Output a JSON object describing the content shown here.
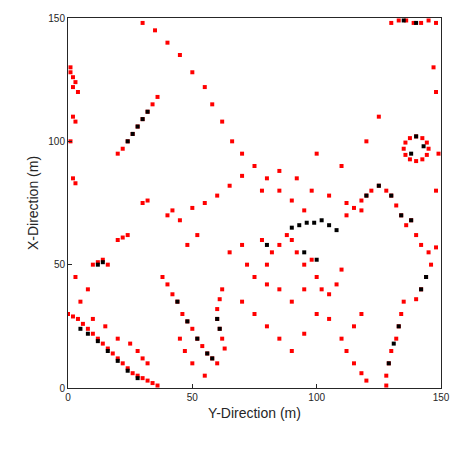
{
  "chart_data": {
    "type": "scatter",
    "x_label": "Y-Direction (m)",
    "y_label": "X-Direction (m)",
    "xlim": [
      0,
      150
    ],
    "ylim": [
      0,
      150
    ],
    "xticks": [
      0,
      50,
      100,
      150
    ],
    "yticks": [
      0,
      50,
      100,
      150
    ],
    "grid": false,
    "marker": "square",
    "series": [
      {
        "color": "#ff0000",
        "x": [
          1,
          2,
          3,
          2,
          1,
          4,
          2,
          3,
          1,
          2,
          3,
          30,
          35,
          40,
          45,
          50,
          55,
          58,
          62,
          66,
          70,
          75,
          80,
          85,
          90,
          95,
          20,
          22,
          24,
          26,
          28,
          30,
          32,
          34,
          36,
          10,
          12,
          14,
          16,
          20,
          22,
          24,
          30,
          32,
          40,
          42,
          45,
          50,
          55,
          52,
          48,
          0,
          2,
          4,
          6,
          8,
          10,
          12,
          14,
          16,
          18,
          20,
          22,
          24,
          26,
          28,
          30,
          32,
          34,
          36,
          20,
          25,
          28,
          30,
          32,
          15,
          10,
          5,
          8,
          3,
          38,
          40,
          42,
          44,
          46,
          48,
          50,
          52,
          54,
          56,
          58,
          60,
          62,
          61,
          60,
          60,
          61,
          62,
          63,
          45,
          47,
          50,
          55,
          65,
          70,
          72,
          75,
          78,
          80,
          82,
          85,
          88,
          90,
          92,
          95,
          98,
          100,
          102,
          105,
          108,
          110,
          70,
          75,
          80,
          85,
          90,
          95,
          100,
          105,
          110,
          112,
          115,
          118,
          95,
          90,
          85,
          80,
          60,
          65,
          70,
          78,
          85,
          92,
          98,
          105,
          112,
          118,
          100,
          110,
          120,
          125,
          112,
          115,
          118,
          120,
          122,
          125,
          128,
          130,
          132,
          134,
          136,
          138,
          140,
          142,
          145,
          148,
          146,
          144,
          142,
          140,
          135,
          134,
          133,
          132,
          130,
          129,
          128,
          128,
          115,
          118,
          120,
          145,
          144.3,
          142.5,
          140,
          137.5,
          135.7,
          135,
          135.7,
          137.5,
          140,
          142.5,
          144.3,
          130,
          133,
          136,
          139,
          142,
          145,
          148,
          147,
          148,
          149,
          148
        ],
        "y": [
          128,
          126,
          124,
          122,
          130,
          120,
          110,
          108,
          100,
          85,
          83,
          148,
          145,
          140,
          135,
          128,
          122,
          115,
          108,
          100,
          95,
          90,
          85,
          80,
          76,
          72,
          95,
          97,
          100,
          103,
          106,
          109,
          112,
          115,
          118,
          50,
          51,
          52,
          50,
          60,
          61,
          62,
          75,
          76,
          70,
          72,
          68,
          73,
          75,
          62,
          58,
          30,
          29,
          28,
          26,
          24,
          22,
          20,
          18,
          16,
          14,
          12,
          10,
          8,
          6,
          5,
          4,
          3,
          2,
          1,
          20,
          18,
          15,
          12,
          10,
          25,
          28,
          35,
          40,
          45,
          45,
          42,
          38,
          35,
          30,
          27,
          24,
          20,
          17,
          14,
          12,
          10,
          40,
          36,
          32,
          28,
          24,
          20,
          16,
          20,
          15,
          10,
          5,
          55,
          58,
          50,
          45,
          60,
          50,
          55,
          58,
          62,
          60,
          55,
          50,
          52,
          45,
          40,
          38,
          42,
          48,
          35,
          30,
          25,
          20,
          15,
          22,
          30,
          28,
          20,
          15,
          25,
          30,
          40,
          35,
          40,
          42,
          78,
          82,
          86,
          80,
          88,
          85,
          80,
          78,
          75,
          72,
          95,
          90,
          100,
          110,
          70,
          73,
          76,
          78,
          80,
          82,
          80,
          78,
          74,
          70,
          66,
          68,
          62,
          58,
          55,
          57,
          50,
          45,
          40,
          36,
          35,
          30,
          25,
          20,
          15,
          10,
          5,
          1,
          10,
          6,
          3,
          97,
          99.5,
          101.3,
          102,
          101.3,
          99.5,
          97,
          94.5,
          92.7,
          92,
          92.7,
          94.5,
          148,
          149,
          149,
          148,
          148,
          149,
          148,
          130,
          120,
          95,
          80
        ]
      },
      {
        "color": "#000000",
        "x": [
          24,
          26,
          28,
          30,
          32,
          12,
          14,
          5,
          8,
          12,
          16,
          20,
          24,
          28,
          44,
          48,
          52,
          56,
          58,
          90,
          93,
          96,
          99,
          102,
          105,
          108,
          120,
          125,
          130,
          134,
          138,
          144,
          142,
          133,
          131,
          129,
          60,
          61,
          138,
          140,
          143,
          135,
          140,
          95,
          100,
          80
        ],
        "y": [
          100,
          103,
          106,
          109,
          112,
          50,
          51,
          24,
          22,
          19,
          15,
          11,
          7,
          4,
          35,
          27,
          20,
          14,
          12,
          65,
          66,
          67,
          67,
          68,
          66,
          64,
          78,
          82,
          78,
          70,
          68,
          45,
          40,
          25,
          18,
          10,
          28,
          24,
          95,
          102,
          98,
          149,
          148,
          55,
          52,
          58
        ]
      }
    ]
  }
}
